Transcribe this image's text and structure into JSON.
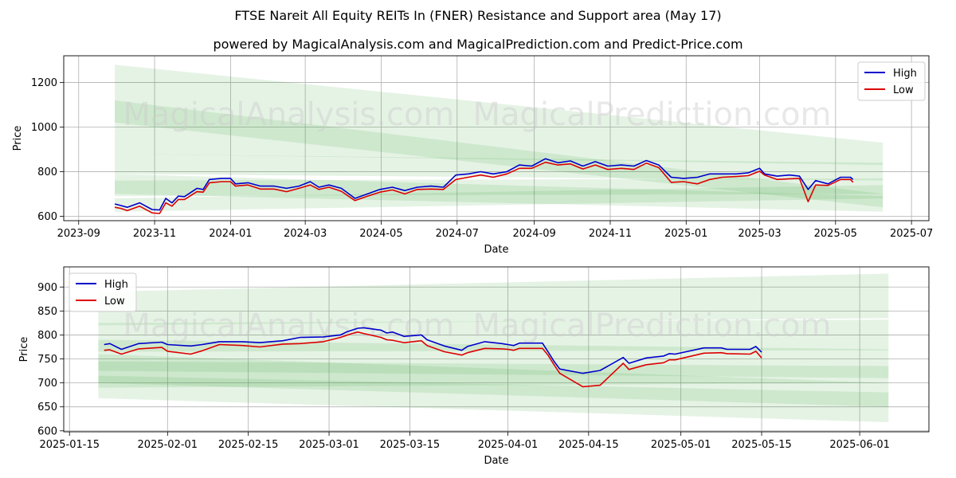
{
  "title": "FTSE Nareit All Equity REITs In (FNER) Resistance and Support area (May 17)",
  "subtitle": "powered by MagicalAnalysis.com and MagicalPrediction.com and Predict-Price.com",
  "watermark": [
    "MagicalAnalysis.com",
    "MagicalPrediction.com"
  ],
  "colors": {
    "high": "#0000cc",
    "low": "#dd0000",
    "band": "#2ca02c"
  },
  "chart_data": [
    {
      "type": "line",
      "xlabel": "Date",
      "ylabel": "Price",
      "x_ticks": [
        "2023-09",
        "2023-11",
        "2024-01",
        "2024-03",
        "2024-05",
        "2024-07",
        "2024-09",
        "2024-11",
        "2025-01",
        "2025-03",
        "2025-05",
        "2025-07"
      ],
      "y_ticks": [
        600,
        800,
        1000,
        1200
      ],
      "xlim": [
        "2023-08-20",
        "2025-07-15"
      ],
      "ylim": [
        580,
        1320
      ],
      "legend": "top-right",
      "grid": true,
      "bands": [
        {
          "x": [
            "2023-09-30",
            "2025-06-08"
          ],
          "upper": [
            1280,
            930
          ],
          "lower": [
            880,
            830
          ]
        },
        {
          "x": [
            "2023-09-30",
            "2025-06-08"
          ],
          "upper": [
            1120,
            700
          ],
          "lower": [
            1020,
            640
          ]
        },
        {
          "x": [
            "2023-09-30",
            "2025-06-08"
          ],
          "upper": [
            880,
            840
          ],
          "lower": [
            790,
            760
          ]
        },
        {
          "x": [
            "2023-09-30",
            "2025-06-08"
          ],
          "upper": [
            760,
            770
          ],
          "lower": [
            690,
            700
          ]
        },
        {
          "x": [
            "2023-09-30",
            "2025-06-08"
          ],
          "upper": [
            790,
            690
          ],
          "lower": [
            700,
            620
          ]
        },
        {
          "x": [
            "2023-09-30",
            "2025-06-08"
          ],
          "upper": [
            680,
            740
          ],
          "lower": [
            620,
            680
          ]
        }
      ],
      "series": [
        {
          "name": "High",
          "x": [
            "2023-09-30",
            "2023-10-05",
            "2023-10-10",
            "2023-10-20",
            "2023-10-30",
            "2023-11-05",
            "2023-11-10",
            "2023-11-15",
            "2023-11-20",
            "2023-11-25",
            "2023-12-05",
            "2023-12-10",
            "2023-12-15",
            "2023-12-25",
            "2024-01-01",
            "2024-01-05",
            "2024-01-15",
            "2024-01-25",
            "2024-02-05",
            "2024-02-15",
            "2024-02-25",
            "2024-03-05",
            "2024-03-12",
            "2024-03-20",
            "2024-03-30",
            "2024-04-10",
            "2024-04-20",
            "2024-04-30",
            "2024-05-10",
            "2024-05-20",
            "2024-05-30",
            "2024-06-10",
            "2024-06-20",
            "2024-06-30",
            "2024-07-10",
            "2024-07-20",
            "2024-07-30",
            "2024-08-10",
            "2024-08-20",
            "2024-08-30",
            "2024-09-10",
            "2024-09-20",
            "2024-09-30",
            "2024-10-10",
            "2024-10-20",
            "2024-10-30",
            "2024-11-10",
            "2024-11-20",
            "2024-11-30",
            "2024-12-10",
            "2024-12-20",
            "2024-12-30",
            "2025-01-10",
            "2025-01-20",
            "2025-01-30",
            "2025-02-10",
            "2025-02-20",
            "2025-03-01",
            "2025-03-05",
            "2025-03-15",
            "2025-03-25",
            "2025-04-02",
            "2025-04-09",
            "2025-04-15",
            "2025-04-25",
            "2025-05-05",
            "2025-05-13",
            "2025-05-15"
          ],
          "values": [
            655,
            648,
            640,
            660,
            630,
            628,
            680,
            660,
            690,
            688,
            725,
            720,
            765,
            770,
            770,
            745,
            750,
            735,
            735,
            725,
            735,
            755,
            730,
            740,
            725,
            680,
            700,
            720,
            730,
            715,
            730,
            735,
            730,
            785,
            790,
            800,
            790,
            800,
            830,
            825,
            858,
            840,
            848,
            825,
            845,
            825,
            830,
            825,
            850,
            830,
            775,
            770,
            775,
            790,
            790,
            790,
            795,
            815,
            790,
            780,
            785,
            780,
            720,
            760,
            745,
            775,
            775,
            765
          ]
        },
        {
          "name": "Low",
          "x": [
            "2023-09-30",
            "2023-10-05",
            "2023-10-10",
            "2023-10-20",
            "2023-10-30",
            "2023-11-05",
            "2023-11-10",
            "2023-11-15",
            "2023-11-20",
            "2023-11-25",
            "2023-12-05",
            "2023-12-10",
            "2023-12-15",
            "2023-12-25",
            "2024-01-01",
            "2024-01-05",
            "2024-01-15",
            "2024-01-25",
            "2024-02-05",
            "2024-02-15",
            "2024-02-25",
            "2024-03-05",
            "2024-03-12",
            "2024-03-20",
            "2024-03-30",
            "2024-04-10",
            "2024-04-20",
            "2024-04-30",
            "2024-05-10",
            "2024-05-20",
            "2024-05-30",
            "2024-06-10",
            "2024-06-20",
            "2024-06-30",
            "2024-07-10",
            "2024-07-20",
            "2024-07-30",
            "2024-08-10",
            "2024-08-20",
            "2024-08-30",
            "2024-09-10",
            "2024-09-20",
            "2024-09-30",
            "2024-10-10",
            "2024-10-20",
            "2024-10-30",
            "2024-11-10",
            "2024-11-20",
            "2024-11-30",
            "2024-12-10",
            "2024-12-20",
            "2024-12-30",
            "2025-01-10",
            "2025-01-20",
            "2025-01-30",
            "2025-02-10",
            "2025-02-20",
            "2025-03-01",
            "2025-03-05",
            "2025-03-15",
            "2025-03-25",
            "2025-04-02",
            "2025-04-09",
            "2025-04-15",
            "2025-04-25",
            "2025-05-05",
            "2025-05-13",
            "2025-05-15"
          ],
          "values": [
            640,
            635,
            625,
            645,
            615,
            612,
            660,
            645,
            675,
            675,
            710,
            708,
            750,
            755,
            755,
            735,
            740,
            722,
            722,
            710,
            725,
            740,
            720,
            730,
            712,
            670,
            690,
            708,
            718,
            700,
            720,
            722,
            720,
            765,
            775,
            785,
            775,
            790,
            815,
            815,
            842,
            830,
            835,
            812,
            830,
            810,
            815,
            810,
            838,
            818,
            752,
            755,
            745,
            765,
            775,
            778,
            782,
            802,
            785,
            765,
            768,
            770,
            665,
            740,
            738,
            765,
            765,
            752
          ]
        }
      ]
    },
    {
      "type": "line",
      "xlabel": "Date",
      "ylabel": "Price",
      "x_ticks": [
        "2025-01-15",
        "2025-02-01",
        "2025-02-15",
        "2025-03-01",
        "2025-03-15",
        "2025-04-01",
        "2025-04-15",
        "2025-05-01",
        "2025-05-15",
        "2025-06-01"
      ],
      "y_ticks": [
        600,
        650,
        700,
        750,
        800,
        850,
        900
      ],
      "xlim": [
        "2025-01-14",
        "2025-06-13"
      ],
      "ylim": [
        598,
        942
      ],
      "legend": "top-left",
      "grid": true,
      "bands": [
        {
          "x": [
            "2025-01-20",
            "2025-06-06"
          ],
          "upper": [
            890,
            928
          ],
          "lower": [
            820,
            835
          ]
        },
        {
          "x": [
            "2025-01-20",
            "2025-06-06"
          ],
          "upper": [
            825,
            832
          ],
          "lower": [
            765,
            768
          ]
        },
        {
          "x": [
            "2025-01-20",
            "2025-06-06"
          ],
          "upper": [
            790,
            770
          ],
          "lower": [
            725,
            710
          ]
        },
        {
          "x": [
            "2025-01-20",
            "2025-06-06"
          ],
          "upper": [
            745,
            735
          ],
          "lower": [
            690,
            700
          ]
        },
        {
          "x": [
            "2025-01-20",
            "2025-06-06"
          ],
          "upper": [
            760,
            700
          ],
          "lower": [
            700,
            650
          ]
        },
        {
          "x": [
            "2025-01-20",
            "2025-06-06"
          ],
          "upper": [
            715,
            680
          ],
          "lower": [
            668,
            618
          ]
        }
      ],
      "series": [
        {
          "name": "High",
          "x": [
            "2025-01-21",
            "2025-01-22",
            "2025-01-24",
            "2025-01-27",
            "2025-01-31",
            "2025-02-01",
            "2025-02-05",
            "2025-02-07",
            "2025-02-10",
            "2025-02-14",
            "2025-02-17",
            "2025-02-21",
            "2025-02-24",
            "2025-02-28",
            "2025-03-03",
            "2025-03-04",
            "2025-03-05",
            "2025-03-06",
            "2025-03-07",
            "2025-03-10",
            "2025-03-11",
            "2025-03-12",
            "2025-03-14",
            "2025-03-17",
            "2025-03-18",
            "2025-03-21",
            "2025-03-24",
            "2025-03-25",
            "2025-03-28",
            "2025-03-31",
            "2025-04-01",
            "2025-04-02",
            "2025-04-03",
            "2025-04-07",
            "2025-04-08",
            "2025-04-09",
            "2025-04-10",
            "2025-04-14",
            "2025-04-17",
            "2025-04-21",
            "2025-04-22",
            "2025-04-25",
            "2025-04-28",
            "2025-04-29",
            "2025-04-30",
            "2025-05-05",
            "2025-05-08",
            "2025-05-09",
            "2025-05-13",
            "2025-05-14",
            "2025-05-15"
          ],
          "values": [
            780,
            782,
            770,
            782,
            785,
            780,
            777,
            780,
            786,
            786,
            784,
            788,
            795,
            796,
            800,
            806,
            810,
            814,
            815,
            810,
            804,
            806,
            797,
            800,
            790,
            777,
            768,
            776,
            786,
            782,
            780,
            778,
            783,
            783,
            764,
            745,
            729,
            720,
            726,
            753,
            741,
            752,
            756,
            761,
            760,
            773,
            773,
            770,
            770,
            776,
            764
          ]
        },
        {
          "name": "Low",
          "x": [
            "2025-01-21",
            "2025-01-22",
            "2025-01-24",
            "2025-01-27",
            "2025-01-31",
            "2025-02-01",
            "2025-02-05",
            "2025-02-07",
            "2025-02-10",
            "2025-02-14",
            "2025-02-17",
            "2025-02-21",
            "2025-02-24",
            "2025-02-28",
            "2025-03-03",
            "2025-03-04",
            "2025-03-05",
            "2025-03-06",
            "2025-03-07",
            "2025-03-10",
            "2025-03-11",
            "2025-03-12",
            "2025-03-14",
            "2025-03-17",
            "2025-03-18",
            "2025-03-21",
            "2025-03-24",
            "2025-03-25",
            "2025-03-28",
            "2025-03-31",
            "2025-04-01",
            "2025-04-02",
            "2025-04-03",
            "2025-04-07",
            "2025-04-08",
            "2025-04-09",
            "2025-04-10",
            "2025-04-14",
            "2025-04-17",
            "2025-04-21",
            "2025-04-22",
            "2025-04-25",
            "2025-04-28",
            "2025-04-29",
            "2025-04-30",
            "2025-05-05",
            "2025-05-08",
            "2025-05-09",
            "2025-05-13",
            "2025-05-14",
            "2025-05-15"
          ],
          "values": [
            768,
            769,
            760,
            771,
            774,
            766,
            760,
            767,
            780,
            778,
            775,
            781,
            782,
            786,
            795,
            799,
            803,
            806,
            803,
            795,
            790,
            789,
            784,
            788,
            778,
            765,
            758,
            763,
            772,
            771,
            770,
            768,
            772,
            772,
            757,
            738,
            720,
            692,
            695,
            741,
            728,
            738,
            742,
            748,
            748,
            762,
            763,
            761,
            760,
            766,
            752
          ]
        }
      ]
    }
  ]
}
